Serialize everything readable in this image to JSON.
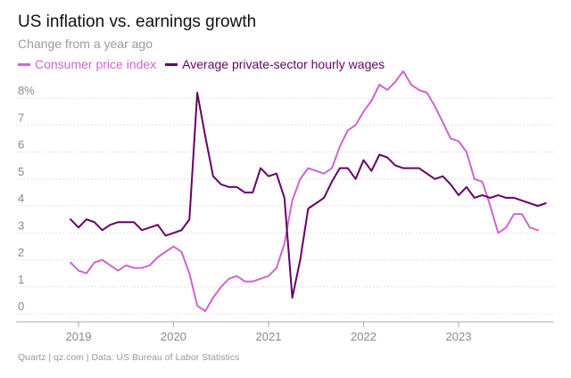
{
  "title": "US inflation vs. earnings growth",
  "subtitle": "Change from a year ago",
  "footer": "Quartz | qz.com | Data: US Bureau of Labor Statistics",
  "colors": {
    "cpi": "#cc66cc",
    "wages": "#660066",
    "grid": "#e3e3e3",
    "axis": "#aaaaaa",
    "tick_text": "#888888"
  },
  "chart_data": {
    "type": "line",
    "title": "US inflation vs. earnings growth",
    "subtitle": "Change from a year ago",
    "xlabel": "",
    "ylabel": "",
    "ylim": [
      0,
      8.5
    ],
    "xlim": [
      "2018-11",
      "2023-12"
    ],
    "yticks": [
      0,
      1,
      2,
      3,
      4,
      5,
      6,
      7,
      8
    ],
    "ytick_labels": [
      "0",
      "1",
      "2",
      "3",
      "4",
      "5",
      "6",
      "7",
      "8%"
    ],
    "xticks": [
      "2019",
      "2020",
      "2021",
      "2022",
      "2023"
    ],
    "grid": true,
    "legend_position": "top-left",
    "x": [
      "2018-12",
      "2019-01",
      "2019-02",
      "2019-03",
      "2019-04",
      "2019-05",
      "2019-06",
      "2019-07",
      "2019-08",
      "2019-09",
      "2019-10",
      "2019-11",
      "2019-12",
      "2020-01",
      "2020-02",
      "2020-03",
      "2020-04",
      "2020-05",
      "2020-06",
      "2020-07",
      "2020-08",
      "2020-09",
      "2020-10",
      "2020-11",
      "2020-12",
      "2021-01",
      "2021-02",
      "2021-03",
      "2021-04",
      "2021-05",
      "2021-06",
      "2021-07",
      "2021-08",
      "2021-09",
      "2021-10",
      "2021-11",
      "2021-12",
      "2022-01",
      "2022-02",
      "2022-03",
      "2022-04",
      "2022-05",
      "2022-06",
      "2022-07",
      "2022-08",
      "2022-09",
      "2022-10",
      "2022-11",
      "2022-12",
      "2023-01",
      "2023-02",
      "2023-03",
      "2023-04",
      "2023-05",
      "2023-06",
      "2023-07",
      "2023-08",
      "2023-09",
      "2023-10",
      "2023-11",
      "2023-12"
    ],
    "series": [
      {
        "name": "Consumer price index",
        "color": "#cc66cc",
        "values": [
          1.9,
          1.6,
          1.5,
          1.9,
          2.0,
          1.8,
          1.6,
          1.8,
          1.7,
          1.7,
          1.8,
          2.1,
          2.3,
          2.5,
          2.3,
          1.5,
          0.3,
          0.1,
          0.6,
          1.0,
          1.3,
          1.4,
          1.2,
          1.2,
          1.3,
          1.4,
          1.7,
          2.6,
          4.2,
          5.0,
          5.4,
          5.3,
          5.2,
          5.4,
          6.2,
          6.8,
          7.0,
          7.5,
          7.9,
          8.5,
          8.3,
          8.6,
          9.0,
          8.5,
          8.3,
          8.2,
          7.7,
          7.1,
          6.5,
          6.4,
          6.0,
          5.0,
          4.9,
          4.0,
          3.0,
          3.2,
          3.7,
          3.7,
          3.2,
          3.1,
          null
        ]
      },
      {
        "name": "Average private-sector hourly wages",
        "color": "#660066",
        "values": [
          3.5,
          3.2,
          3.5,
          3.4,
          3.1,
          3.3,
          3.4,
          3.4,
          3.4,
          3.1,
          3.2,
          3.3,
          2.9,
          3.0,
          3.1,
          3.5,
          8.2,
          6.6,
          5.1,
          4.8,
          4.7,
          4.7,
          4.5,
          4.5,
          5.4,
          5.1,
          5.2,
          4.3,
          0.6,
          2.0,
          3.9,
          4.1,
          4.3,
          4.9,
          5.4,
          5.4,
          5.0,
          5.7,
          5.3,
          5.9,
          5.8,
          5.5,
          5.4,
          5.4,
          5.4,
          5.2,
          5.0,
          5.1,
          4.8,
          4.4,
          4.7,
          4.3,
          4.4,
          4.3,
          4.4,
          4.3,
          4.3,
          4.2,
          4.1,
          4.0,
          4.1
        ]
      }
    ]
  }
}
